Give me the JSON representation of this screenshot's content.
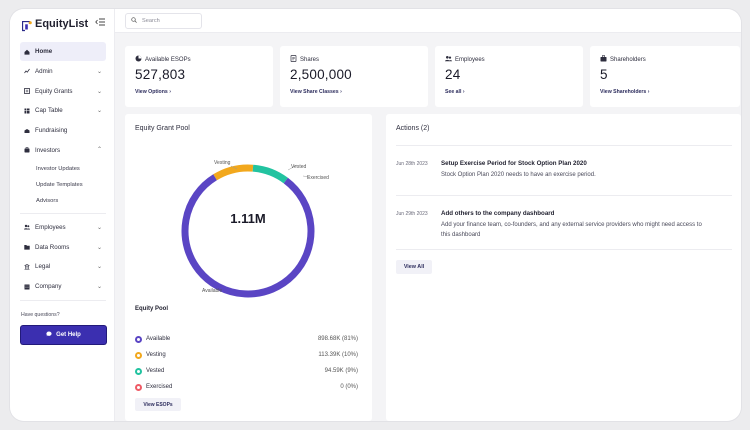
{
  "brand": {
    "name": "EquityList"
  },
  "search": {
    "placeholder": "Search"
  },
  "nav": {
    "home": "Home",
    "admin": "Admin",
    "equity_grants": "Equity Grants",
    "cap_table": "Cap Table",
    "fundraising": "Fundraising",
    "investors": "Investors",
    "investor_updates": "Investor Updates",
    "update_templates": "Update Templates",
    "advisors": "Advisors",
    "employees": "Employees",
    "data_rooms": "Data Rooms",
    "legal": "Legal",
    "company": "Company"
  },
  "help": {
    "question": "Have questions?",
    "button": "Get Help"
  },
  "stats": [
    {
      "label": "Available ESOPs",
      "value": "527,803",
      "link": "View Options"
    },
    {
      "label": "Shares",
      "value": "2,500,000",
      "link": "View Share Classes"
    },
    {
      "label": "Employees",
      "value": "24",
      "link": "See all"
    },
    {
      "label": "Shareholders",
      "value": "5",
      "link": "View Shareholders"
    }
  ],
  "pool": {
    "title": "Equity Grant Pool",
    "center": "1.11M",
    "subtitle": "Equity Pool",
    "button": "View ESOPs",
    "donut_labels": {
      "vesting": "Vesting",
      "vested": "Vested",
      "exercised": "Exercised",
      "available": "Available"
    },
    "legend": [
      {
        "label": "Available",
        "value": "898.68K (81%)",
        "color": "#5a45c4"
      },
      {
        "label": "Vesting",
        "value": "113.39K (10%)",
        "color": "#f2a81d"
      },
      {
        "label": "Vested",
        "value": "94.59K (9%)",
        "color": "#22c3a0"
      },
      {
        "label": "Exercised",
        "value": "0 (0%)",
        "color": "#ef5b66"
      }
    ]
  },
  "actions": {
    "title": "Actions (2)",
    "items": [
      {
        "date": "Jun 28th 2023",
        "title": "Setup Exercise Period for Stock Option Plan 2020",
        "desc": "Stock Option Plan 2020 needs to have an exercise period."
      },
      {
        "date": "Jun 29th 2023",
        "title": "Add others to the company dashboard",
        "desc": "Add your finance team, co-founders, and any external service providers who might need access to this dashboard"
      }
    ],
    "view_all": "View All"
  },
  "colors": {
    "primary": "#3b2fb0",
    "available": "#5a45c4",
    "vesting": "#f2a81d",
    "vested": "#22c3a0",
    "exercised": "#ef5b66"
  },
  "icons": [
    "home-icon",
    "admin-icon",
    "equity-grants-icon",
    "cap-table-icon",
    "fundraising-icon",
    "investors-icon",
    "employees-icon",
    "data-rooms-icon",
    "legal-icon",
    "company-icon",
    "search-icon",
    "chat-icon"
  ]
}
